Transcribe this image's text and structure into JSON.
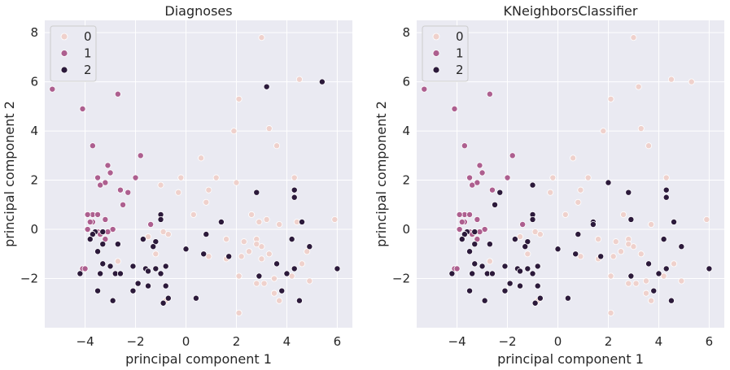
{
  "colors": {
    "class_0": "#efd1cc",
    "class_1": "#ad5f8f",
    "class_2": "#2c1a3b",
    "background": "#eaeaf2",
    "grid": "#ffffff"
  },
  "chart_data": [
    {
      "type": "scatter",
      "title": "Diagnoses",
      "xlabel": "principal component 1",
      "ylabel": "principal component 2",
      "xlim": [
        -5.6,
        6.6
      ],
      "ylim": [
        -4.0,
        8.5
      ],
      "xticks": [
        -4,
        -2,
        0,
        2,
        4,
        6
      ],
      "yticks": [
        -2,
        0,
        2,
        4,
        6,
        8
      ],
      "grid": true,
      "legend_position": "top-left",
      "legend": [
        "0",
        "1",
        "2"
      ],
      "series": [
        {
          "name": "0",
          "points": [
            [
              3.0,
              7.8
            ],
            [
              4.5,
              6.1
            ],
            [
              2.1,
              5.3
            ],
            [
              1.9,
              4.0
            ],
            [
              3.3,
              4.1
            ],
            [
              3.6,
              3.4
            ],
            [
              0.6,
              2.9
            ],
            [
              4.3,
              2.1
            ],
            [
              -0.2,
              2.1
            ],
            [
              -1.0,
              1.8
            ],
            [
              1.2,
              2.1
            ],
            [
              2.0,
              1.9
            ],
            [
              0.9,
              1.6
            ],
            [
              -0.3,
              1.5
            ],
            [
              0.3,
              0.6
            ],
            [
              0.8,
              1.1
            ],
            [
              2.6,
              0.6
            ],
            [
              3.2,
              0.4
            ],
            [
              3.7,
              0.2
            ],
            [
              2.9,
              0.3
            ],
            [
              4.4,
              0.3
            ],
            [
              5.9,
              0.4
            ],
            [
              -0.9,
              -0.1
            ],
            [
              -0.7,
              -0.2
            ],
            [
              -1.5,
              -0.3
            ],
            [
              1.6,
              -0.4
            ],
            [
              2.3,
              -0.5
            ],
            [
              2.8,
              -0.4
            ],
            [
              2.8,
              -0.6
            ],
            [
              3.0,
              -0.7
            ],
            [
              3.3,
              -1.0
            ],
            [
              2.5,
              -0.9
            ],
            [
              3.0,
              -1.2
            ],
            [
              2.2,
              -1.1
            ],
            [
              4.8,
              -0.9
            ],
            [
              4.6,
              -1.4
            ],
            [
              1.6,
              -1.2
            ],
            [
              0.9,
              -1.1
            ],
            [
              -1.2,
              -1.0
            ],
            [
              -2.7,
              -1.3
            ],
            [
              2.1,
              -1.9
            ],
            [
              3.5,
              -2.0
            ],
            [
              4.2,
              -1.9
            ],
            [
              3.1,
              -2.2
            ],
            [
              2.8,
              -2.2
            ],
            [
              3.5,
              -2.6
            ],
            [
              4.9,
              -2.1
            ],
            [
              3.7,
              -2.9
            ],
            [
              3.5,
              -2.6
            ],
            [
              2.1,
              -3.4
            ],
            [
              -0.8,
              -2.9
            ]
          ]
        },
        {
          "name": "1",
          "points": [
            [
              -5.3,
              5.7
            ],
            [
              -4.1,
              4.9
            ],
            [
              -2.7,
              5.5
            ],
            [
              -3.7,
              3.4
            ],
            [
              -1.8,
              3.0
            ],
            [
              -3.1,
              2.6
            ],
            [
              -3.0,
              2.3
            ],
            [
              -3.5,
              2.1
            ],
            [
              -3.2,
              1.9
            ],
            [
              -2.0,
              2.1
            ],
            [
              -3.4,
              1.8
            ],
            [
              -2.6,
              1.6
            ],
            [
              -2.3,
              1.5
            ],
            [
              -3.7,
              0.6
            ],
            [
              -3.9,
              0.6
            ],
            [
              -3.5,
              0.6
            ],
            [
              -3.7,
              0.3
            ],
            [
              -3.8,
              0.3
            ],
            [
              -3.2,
              0.4
            ],
            [
              -2.5,
              1.0
            ],
            [
              -3.9,
              -0.0
            ],
            [
              -3.5,
              -0.1
            ],
            [
              -2.9,
              -0.0
            ],
            [
              -3.1,
              -0.1
            ],
            [
              -1.4,
              0.2
            ],
            [
              -3.4,
              -0.2
            ],
            [
              -3.2,
              -0.4
            ],
            [
              -4.1,
              -1.6
            ],
            [
              -4.0,
              -1.6
            ]
          ]
        },
        {
          "name": "2",
          "points": [
            [
              3.2,
              5.8
            ],
            [
              5.4,
              6.0
            ],
            [
              4.3,
              1.6
            ],
            [
              2.8,
              1.5
            ],
            [
              4.3,
              1.3
            ],
            [
              -1.0,
              0.6
            ],
            [
              -1.0,
              0.4
            ],
            [
              1.4,
              0.3
            ],
            [
              4.6,
              0.3
            ],
            [
              -3.6,
              -0.1
            ],
            [
              -3.7,
              -0.2
            ],
            [
              -3.3,
              -0.1
            ],
            [
              -3.8,
              -0.4
            ],
            [
              -1.7,
              -0.4
            ],
            [
              -1.2,
              -0.5
            ],
            [
              0.0,
              -0.8
            ],
            [
              0.8,
              -0.2
            ],
            [
              4.2,
              -0.4
            ],
            [
              4.9,
              -0.7
            ],
            [
              -3.3,
              -0.6
            ],
            [
              -2.7,
              -0.6
            ],
            [
              -3.5,
              -0.9
            ],
            [
              -1.3,
              -0.7
            ],
            [
              0.7,
              -1.0
            ],
            [
              1.7,
              -1.1
            ],
            [
              -3.3,
              -1.4
            ],
            [
              -3.0,
              -1.5
            ],
            [
              -2.1,
              -1.5
            ],
            [
              -1.6,
              -1.6
            ],
            [
              -1.5,
              -1.7
            ],
            [
              -1.2,
              -1.6
            ],
            [
              -0.8,
              -1.5
            ],
            [
              3.6,
              -1.4
            ],
            [
              4.3,
              -1.6
            ],
            [
              6.0,
              -1.6
            ],
            [
              -4.2,
              -1.8
            ],
            [
              -3.4,
              -1.8
            ],
            [
              -2.8,
              -1.8
            ],
            [
              -2.6,
              -1.8
            ],
            [
              -1.0,
              -1.8
            ],
            [
              2.9,
              -1.9
            ],
            [
              4.0,
              -1.8
            ],
            [
              -1.9,
              -2.2
            ],
            [
              -1.5,
              -2.3
            ],
            [
              -0.8,
              -2.3
            ],
            [
              -3.5,
              -2.5
            ],
            [
              -2.1,
              -2.5
            ],
            [
              -0.7,
              -2.8
            ],
            [
              0.4,
              -2.8
            ],
            [
              3.8,
              -2.5
            ],
            [
              -2.9,
              -2.9
            ],
            [
              -0.9,
              -3.0
            ],
            [
              4.5,
              -2.9
            ]
          ]
        }
      ]
    },
    {
      "type": "scatter",
      "title": "KNeighborsClassifier",
      "xlabel": "principal component 1",
      "ylabel": "principal component 2",
      "xlim": [
        -5.6,
        6.6
      ],
      "ylim": [
        -4.0,
        8.5
      ],
      "xticks": [
        -4,
        -2,
        0,
        2,
        4,
        6
      ],
      "yticks": [
        -2,
        0,
        2,
        4,
        6,
        8
      ],
      "grid": true,
      "legend_position": "top-left",
      "legend": [
        "0",
        "1",
        "2"
      ],
      "series": [
        {
          "name": "0",
          "points": [
            [
              3.0,
              7.8
            ],
            [
              4.5,
              6.1
            ],
            [
              5.3,
              6.0
            ],
            [
              3.2,
              5.8
            ],
            [
              2.1,
              5.3
            ],
            [
              1.8,
              4.0
            ],
            [
              3.3,
              4.1
            ],
            [
              3.6,
              3.4
            ],
            [
              0.6,
              2.9
            ],
            [
              4.3,
              2.1
            ],
            [
              -0.2,
              2.1
            ],
            [
              1.2,
              2.1
            ],
            [
              0.9,
              1.6
            ],
            [
              -0.3,
              1.5
            ],
            [
              0.8,
              1.1
            ],
            [
              0.3,
              0.6
            ],
            [
              2.6,
              0.6
            ],
            [
              3.7,
              0.2
            ],
            [
              5.9,
              0.4
            ],
            [
              -0.9,
              -0.1
            ],
            [
              -0.7,
              -0.2
            ],
            [
              -1.5,
              -0.3
            ],
            [
              1.6,
              -0.4
            ],
            [
              2.3,
              -0.5
            ],
            [
              2.8,
              -0.4
            ],
            [
              2.8,
              -0.6
            ],
            [
              3.0,
              -0.7
            ],
            [
              3.3,
              -1.0
            ],
            [
              2.5,
              -0.9
            ],
            [
              2.2,
              -1.1
            ],
            [
              1.6,
              -1.2
            ],
            [
              0.9,
              -1.1
            ],
            [
              -1.2,
              -1.0
            ],
            [
              -2.7,
              -1.3
            ],
            [
              4.6,
              -1.4
            ],
            [
              2.1,
              -1.9
            ],
            [
              3.1,
              -2.2
            ],
            [
              2.8,
              -2.2
            ],
            [
              3.5,
              -2.1
            ],
            [
              4.2,
              -1.9
            ],
            [
              4.9,
              -2.1
            ],
            [
              3.5,
              -2.6
            ],
            [
              3.7,
              -2.9
            ],
            [
              2.1,
              -3.4
            ],
            [
              -0.8,
              -2.9
            ]
          ]
        },
        {
          "name": "1",
          "points": [
            [
              -5.3,
              5.7
            ],
            [
              -4.1,
              4.9
            ],
            [
              -2.7,
              5.5
            ],
            [
              -3.7,
              3.4
            ],
            [
              -1.8,
              3.0
            ],
            [
              -3.1,
              2.6
            ],
            [
              -3.0,
              2.3
            ],
            [
              -3.5,
              2.1
            ],
            [
              -3.2,
              1.9
            ],
            [
              -2.0,
              2.1
            ],
            [
              -3.4,
              1.8
            ],
            [
              -2.6,
              1.6
            ],
            [
              -3.7,
              0.6
            ],
            [
              -3.9,
              0.6
            ],
            [
              -3.5,
              0.6
            ],
            [
              -3.7,
              0.3
            ],
            [
              -3.8,
              0.3
            ],
            [
              -3.2,
              0.4
            ],
            [
              -1.4,
              0.2
            ],
            [
              -3.9,
              -0.0
            ],
            [
              -3.5,
              -0.1
            ],
            [
              -2.9,
              -0.0
            ],
            [
              -3.1,
              -0.1
            ],
            [
              -3.4,
              -0.2
            ],
            [
              -3.2,
              -0.4
            ],
            [
              -4.1,
              -1.6
            ],
            [
              -4.0,
              -1.6
            ]
          ]
        },
        {
          "name": "2",
          "points": [
            [
              2.0,
              1.9
            ],
            [
              2.8,
              1.5
            ],
            [
              4.3,
              1.6
            ],
            [
              4.3,
              1.3
            ],
            [
              -1.0,
              1.8
            ],
            [
              -2.5,
              1.0
            ],
            [
              -2.3,
              1.5
            ],
            [
              -1.0,
              0.6
            ],
            [
              -1.0,
              0.4
            ],
            [
              1.4,
              0.3
            ],
            [
              1.4,
              0.2
            ],
            [
              2.9,
              0.4
            ],
            [
              4.6,
              0.3
            ],
            [
              -3.6,
              -0.1
            ],
            [
              -3.7,
              -0.2
            ],
            [
              -3.3,
              -0.1
            ],
            [
              -3.8,
              -0.4
            ],
            [
              -1.7,
              -0.4
            ],
            [
              -1.2,
              -0.5
            ],
            [
              0.0,
              -0.8
            ],
            [
              0.8,
              -0.2
            ],
            [
              4.2,
              -0.4
            ],
            [
              4.9,
              -0.7
            ],
            [
              -3.3,
              -0.6
            ],
            [
              -2.7,
              -0.6
            ],
            [
              -3.5,
              -0.9
            ],
            [
              -1.3,
              -0.7
            ],
            [
              0.7,
              -1.0
            ],
            [
              1.7,
              -1.1
            ],
            [
              -3.3,
              -1.4
            ],
            [
              -3.0,
              -1.5
            ],
            [
              -2.1,
              -1.5
            ],
            [
              -1.6,
              -1.6
            ],
            [
              -1.5,
              -1.7
            ],
            [
              -1.2,
              -1.6
            ],
            [
              -0.8,
              -1.5
            ],
            [
              3.6,
              -1.4
            ],
            [
              4.3,
              -1.6
            ],
            [
              6.0,
              -1.6
            ],
            [
              -4.2,
              -1.8
            ],
            [
              -3.4,
              -1.8
            ],
            [
              -2.8,
              -1.8
            ],
            [
              -2.6,
              -1.8
            ],
            [
              -1.0,
              -1.8
            ],
            [
              2.9,
              -1.9
            ],
            [
              4.0,
              -1.8
            ],
            [
              -1.9,
              -2.2
            ],
            [
              -1.5,
              -2.3
            ],
            [
              -0.8,
              -2.3
            ],
            [
              -3.5,
              -2.5
            ],
            [
              -2.1,
              -2.5
            ],
            [
              -0.7,
              -2.8
            ],
            [
              0.4,
              -2.8
            ],
            [
              3.8,
              -2.5
            ],
            [
              -2.9,
              -2.9
            ],
            [
              -0.9,
              -3.0
            ],
            [
              4.5,
              -2.9
            ]
          ]
        }
      ]
    }
  ]
}
